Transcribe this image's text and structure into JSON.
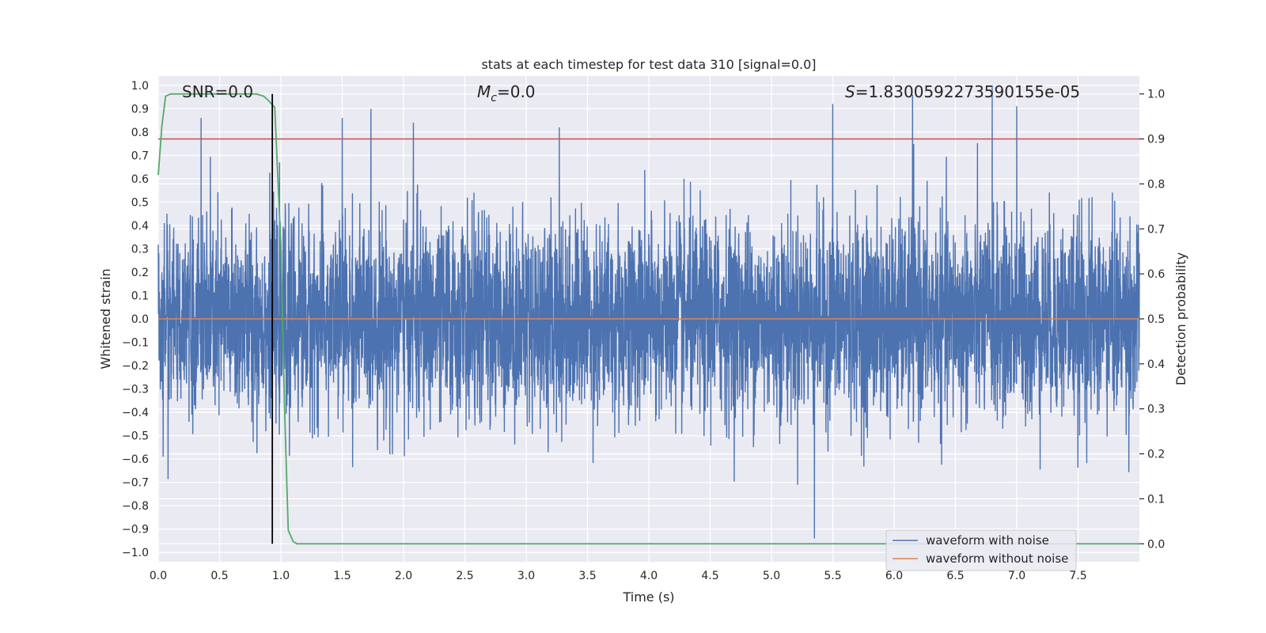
{
  "chart_data": {
    "type": "line",
    "title": "stats at each timestep for test data 310 [signal=0.0]",
    "xlabel": "Time (s)",
    "ylabel": "Whitened strain",
    "y2label": "Detection probability",
    "xlim": [
      0.0,
      8.0
    ],
    "ylim": [
      -1.04,
      1.04
    ],
    "y2lim": [
      -0.04,
      1.04
    ],
    "xticks": [
      "0.0",
      "0.5",
      "1.0",
      "1.5",
      "2.0",
      "2.5",
      "3.0",
      "3.5",
      "4.0",
      "4.5",
      "5.0",
      "5.5",
      "6.0",
      "6.5",
      "7.0",
      "7.5"
    ],
    "yticks": [
      "1.0",
      "0.9",
      "0.8",
      "0.7",
      "0.6",
      "0.5",
      "0.4",
      "0.3",
      "0.2",
      "0.1",
      "0.0",
      "-0.1",
      "-0.2",
      "-0.3",
      "-0.4",
      "-0.5",
      "-0.6",
      "-0.7",
      "-0.8",
      "-0.9",
      "-1.0"
    ],
    "y2ticks": [
      "0.0",
      "0.1",
      "0.2",
      "0.3",
      "0.4",
      "0.5",
      "0.6",
      "0.7",
      "0.8",
      "0.9",
      "1.0"
    ],
    "annotations": {
      "snr": "SNR=0.0",
      "mc_symbol": "M",
      "mc_sub": "c",
      "mc_value": "=0.0",
      "s_symbol": "S",
      "s_value": "=1.8300592273590155e-05"
    },
    "threshold": {
      "y2": 0.9,
      "color": "#C44E52"
    },
    "vline": {
      "x": 0.93,
      "y2_range": [
        0.0,
        1.0
      ],
      "color": "#000000"
    },
    "series": [
      {
        "name": "waveform with noise",
        "color": "#4C72B0",
        "axis": "y",
        "description": "whitened noise strain, roughly within -0.9..1.0",
        "notable_peaks": [
          {
            "x": 0.35,
            "y": 0.86
          },
          {
            "x": 1.5,
            "y": 0.86
          },
          {
            "x": 2.08,
            "y": 0.84
          },
          {
            "x": 3.27,
            "y": 0.82
          },
          {
            "x": 5.5,
            "y": 0.92
          },
          {
            "x": 6.15,
            "y": 0.96
          },
          {
            "x": 6.8,
            "y": 1.0
          },
          {
            "x": 7.0,
            "y": 0.91
          },
          {
            "x": 5.35,
            "y": -0.94
          }
        ]
      },
      {
        "name": "waveform without noise",
        "color": "#DD8452",
        "axis": "y",
        "x": [
          0.0,
          8.0
        ],
        "values": [
          0.0,
          0.0
        ]
      },
      {
        "name": "detection probability",
        "color": "#55A868",
        "axis": "y2",
        "x": [
          0.0,
          0.03,
          0.06,
          0.1,
          0.2,
          0.4,
          0.6,
          0.8,
          0.86,
          0.9,
          0.95,
          1.0,
          1.03,
          1.06,
          1.1,
          1.13,
          1.2,
          2.0,
          4.0,
          6.0,
          8.0
        ],
        "values": [
          0.82,
          0.93,
          0.995,
          1.0,
          1.0,
          1.0,
          1.0,
          1.0,
          0.995,
          0.985,
          0.97,
          0.66,
          0.3,
          0.03,
          0.005,
          0.0,
          0.0,
          0.0,
          0.0,
          0.0,
          0.0
        ]
      }
    ],
    "legend": {
      "position": "lower-right",
      "entries": [
        "waveform with noise",
        "waveform without noise"
      ]
    }
  }
}
